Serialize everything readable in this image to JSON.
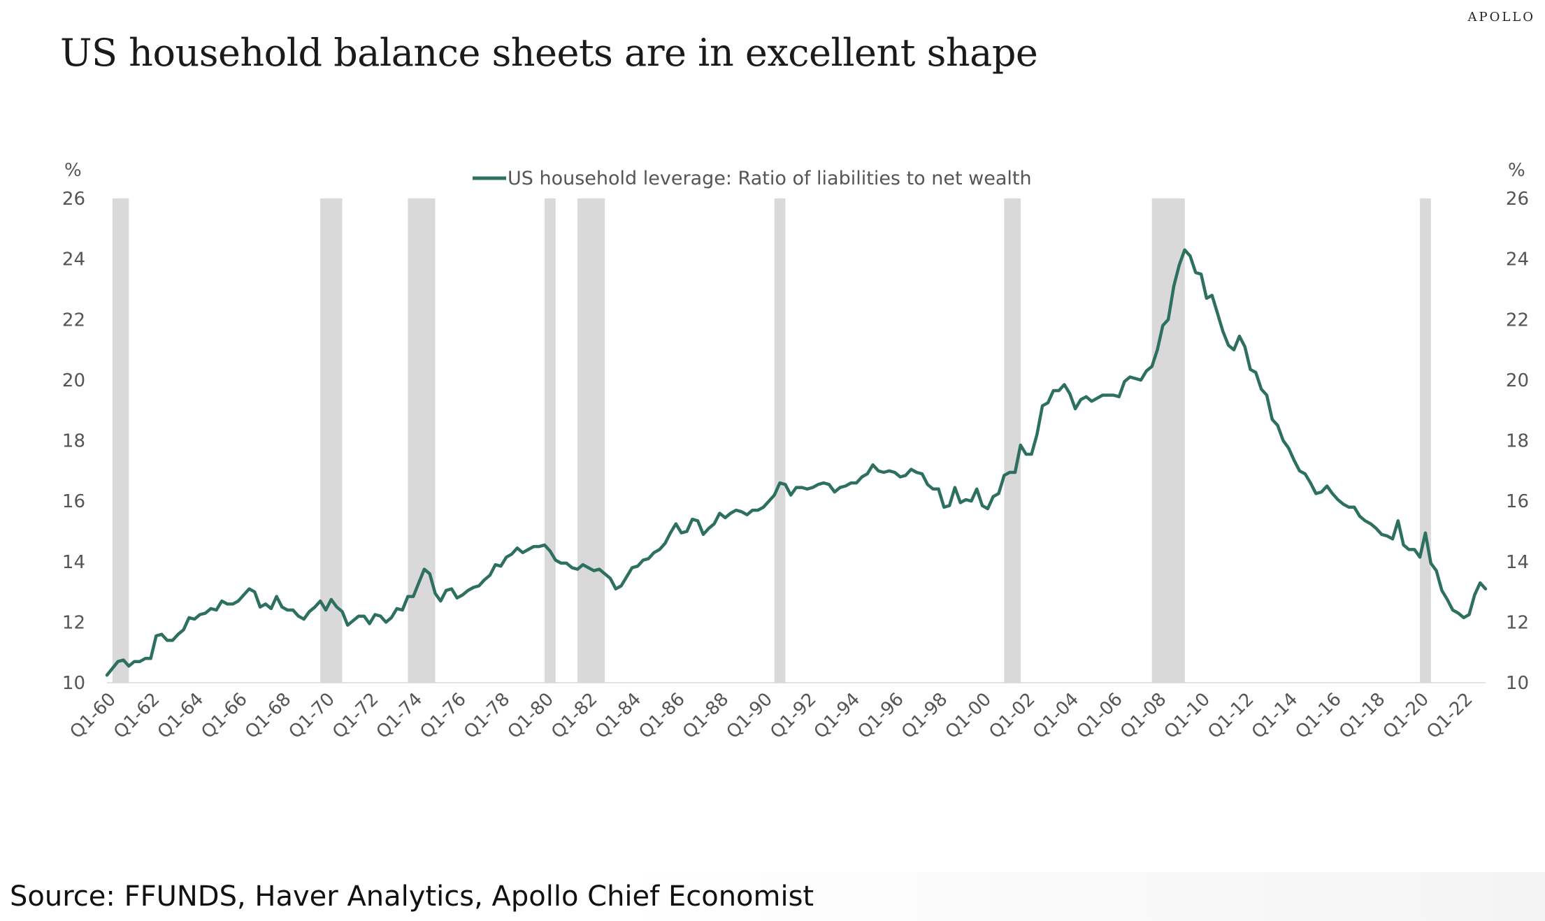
{
  "brand": "APOLLO",
  "title": "US household balance sheets are in excellent shape",
  "source": "Source: FFUNDS, Haver Analytics, Apollo Chief Economist",
  "chart_data": {
    "type": "line",
    "title": "US household balance sheets are in excellent shape",
    "ylabel_left": "%",
    "ylabel_right": "%",
    "ylim": [
      10,
      26
    ],
    "yticks": [
      10,
      12,
      14,
      16,
      18,
      20,
      22,
      24,
      26
    ],
    "xlim": [
      1960,
      2023
    ],
    "xtick_labels": [
      "Q1-60",
      "Q1-62",
      "Q1-64",
      "Q1-66",
      "Q1-68",
      "Q1-70",
      "Q1-72",
      "Q1-74",
      "Q1-76",
      "Q1-78",
      "Q1-80",
      "Q1-82",
      "Q1-84",
      "Q1-86",
      "Q1-88",
      "Q1-90",
      "Q1-92",
      "Q1-94",
      "Q1-96",
      "Q1-98",
      "Q1-00",
      "Q1-02",
      "Q1-04",
      "Q1-06",
      "Q1-08",
      "Q1-10",
      "Q1-12",
      "Q1-14",
      "Q1-16",
      "Q1-18",
      "Q1-20",
      "Q1-22"
    ],
    "grid": false,
    "legend_position": "top-center",
    "line_color": "#2e7060",
    "recession_color": "#d9d9d9",
    "recessions": [
      [
        1960.25,
        1961.0
      ],
      [
        1969.75,
        1970.75
      ],
      [
        1973.75,
        1975.0
      ],
      [
        1980.0,
        1980.5
      ],
      [
        1981.5,
        1982.75
      ],
      [
        1990.5,
        1991.0
      ],
      [
        2001.0,
        2001.75
      ],
      [
        2007.75,
        2009.25
      ],
      [
        2020.0,
        2020.5
      ]
    ],
    "series": [
      {
        "name": "US household leverage: Ratio of liabilities to net wealth",
        "points": [
          [
            1960.0,
            10.25
          ],
          [
            1960.5,
            10.7
          ],
          [
            1960.75,
            10.75
          ],
          [
            1961.0,
            10.55
          ],
          [
            1961.25,
            10.7
          ],
          [
            1961.5,
            10.7
          ],
          [
            1961.75,
            10.8
          ],
          [
            1962.0,
            10.8
          ],
          [
            1962.25,
            11.55
          ],
          [
            1962.5,
            11.6
          ],
          [
            1962.75,
            11.4
          ],
          [
            1963.0,
            11.4
          ],
          [
            1963.25,
            11.6
          ],
          [
            1963.5,
            11.75
          ],
          [
            1963.75,
            12.15
          ],
          [
            1964.0,
            12.1
          ],
          [
            1964.25,
            12.25
          ],
          [
            1964.5,
            12.3
          ],
          [
            1964.75,
            12.45
          ],
          [
            1965.0,
            12.4
          ],
          [
            1965.25,
            12.7
          ],
          [
            1965.5,
            12.6
          ],
          [
            1965.75,
            12.6
          ],
          [
            1966.0,
            12.7
          ],
          [
            1966.25,
            12.9
          ],
          [
            1966.5,
            13.1
          ],
          [
            1966.75,
            13.0
          ],
          [
            1967.0,
            12.5
          ],
          [
            1967.25,
            12.6
          ],
          [
            1967.5,
            12.45
          ],
          [
            1967.75,
            12.85
          ],
          [
            1968.0,
            12.5
          ],
          [
            1968.25,
            12.4
          ],
          [
            1968.5,
            12.4
          ],
          [
            1968.75,
            12.2
          ],
          [
            1969.0,
            12.1
          ],
          [
            1969.25,
            12.35
          ],
          [
            1969.5,
            12.5
          ],
          [
            1969.75,
            12.7
          ],
          [
            1970.0,
            12.4
          ],
          [
            1970.25,
            12.75
          ],
          [
            1970.5,
            12.5
          ],
          [
            1970.75,
            12.35
          ],
          [
            1971.0,
            11.9
          ],
          [
            1971.25,
            12.05
          ],
          [
            1971.5,
            12.2
          ],
          [
            1971.75,
            12.2
          ],
          [
            1972.0,
            11.95
          ],
          [
            1972.25,
            12.25
          ],
          [
            1972.5,
            12.2
          ],
          [
            1972.75,
            12.0
          ],
          [
            1973.0,
            12.15
          ],
          [
            1973.25,
            12.45
          ],
          [
            1973.5,
            12.4
          ],
          [
            1973.75,
            12.85
          ],
          [
            1974.0,
            12.85
          ],
          [
            1974.25,
            13.3
          ],
          [
            1974.5,
            13.75
          ],
          [
            1974.75,
            13.6
          ],
          [
            1975.0,
            12.95
          ],
          [
            1975.25,
            12.7
          ],
          [
            1975.5,
            13.05
          ],
          [
            1975.75,
            13.1
          ],
          [
            1976.0,
            12.8
          ],
          [
            1976.25,
            12.9
          ],
          [
            1976.5,
            13.05
          ],
          [
            1976.75,
            13.15
          ],
          [
            1977.0,
            13.2
          ],
          [
            1977.25,
            13.4
          ],
          [
            1977.5,
            13.55
          ],
          [
            1977.75,
            13.9
          ],
          [
            1978.0,
            13.85
          ],
          [
            1978.25,
            14.15
          ],
          [
            1978.5,
            14.25
          ],
          [
            1978.75,
            14.45
          ],
          [
            1979.0,
            14.3
          ],
          [
            1979.25,
            14.4
          ],
          [
            1979.5,
            14.5
          ],
          [
            1979.75,
            14.5
          ],
          [
            1980.0,
            14.55
          ],
          [
            1980.25,
            14.35
          ],
          [
            1980.5,
            14.05
          ],
          [
            1980.75,
            13.95
          ],
          [
            1981.0,
            13.95
          ],
          [
            1981.25,
            13.8
          ],
          [
            1981.5,
            13.75
          ],
          [
            1981.75,
            13.9
          ],
          [
            1982.0,
            13.8
          ],
          [
            1982.25,
            13.7
          ],
          [
            1982.5,
            13.75
          ],
          [
            1982.75,
            13.6
          ],
          [
            1983.0,
            13.45
          ],
          [
            1983.25,
            13.1
          ],
          [
            1983.5,
            13.2
          ],
          [
            1983.75,
            13.5
          ],
          [
            1984.0,
            13.8
          ],
          [
            1984.25,
            13.85
          ],
          [
            1984.5,
            14.05
          ],
          [
            1984.75,
            14.1
          ],
          [
            1985.0,
            14.3
          ],
          [
            1985.25,
            14.4
          ],
          [
            1985.5,
            14.6
          ],
          [
            1985.75,
            14.95
          ],
          [
            1986.0,
            15.25
          ],
          [
            1986.25,
            14.95
          ],
          [
            1986.5,
            15.0
          ],
          [
            1986.75,
            15.4
          ],
          [
            1987.0,
            15.35
          ],
          [
            1987.25,
            14.9
          ],
          [
            1987.5,
            15.1
          ],
          [
            1987.75,
            15.25
          ],
          [
            1988.0,
            15.6
          ],
          [
            1988.25,
            15.45
          ],
          [
            1988.5,
            15.6
          ],
          [
            1988.75,
            15.7
          ],
          [
            1989.0,
            15.65
          ],
          [
            1989.25,
            15.55
          ],
          [
            1989.5,
            15.7
          ],
          [
            1989.75,
            15.7
          ],
          [
            1990.0,
            15.8
          ],
          [
            1990.25,
            16.0
          ],
          [
            1990.5,
            16.2
          ],
          [
            1990.75,
            16.6
          ],
          [
            1991.0,
            16.55
          ],
          [
            1991.25,
            16.2
          ],
          [
            1991.5,
            16.45
          ],
          [
            1991.75,
            16.45
          ],
          [
            1992.0,
            16.4
          ],
          [
            1992.25,
            16.45
          ],
          [
            1992.5,
            16.55
          ],
          [
            1992.75,
            16.6
          ],
          [
            1993.0,
            16.55
          ],
          [
            1993.25,
            16.3
          ],
          [
            1993.5,
            16.45
          ],
          [
            1993.75,
            16.5
          ],
          [
            1994.0,
            16.6
          ],
          [
            1994.25,
            16.6
          ],
          [
            1994.5,
            16.8
          ],
          [
            1994.75,
            16.9
          ],
          [
            1995.0,
            17.2
          ],
          [
            1995.25,
            17.0
          ],
          [
            1995.5,
            16.95
          ],
          [
            1995.75,
            17.0
          ],
          [
            1996.0,
            16.95
          ],
          [
            1996.25,
            16.8
          ],
          [
            1996.5,
            16.85
          ],
          [
            1996.75,
            17.05
          ],
          [
            1997.0,
            16.95
          ],
          [
            1997.25,
            16.9
          ],
          [
            1997.5,
            16.55
          ],
          [
            1997.75,
            16.4
          ],
          [
            1998.0,
            16.4
          ],
          [
            1998.25,
            15.8
          ],
          [
            1998.5,
            15.85
          ],
          [
            1998.75,
            16.45
          ],
          [
            1999.0,
            15.95
          ],
          [
            1999.25,
            16.05
          ],
          [
            1999.5,
            16.0
          ],
          [
            1999.75,
            16.4
          ],
          [
            2000.0,
            15.85
          ],
          [
            2000.25,
            15.75
          ],
          [
            2000.5,
            16.15
          ],
          [
            2000.75,
            16.25
          ],
          [
            2001.0,
            16.85
          ],
          [
            2001.25,
            16.95
          ],
          [
            2001.5,
            16.95
          ],
          [
            2001.75,
            17.85
          ],
          [
            2002.0,
            17.55
          ],
          [
            2002.25,
            17.55
          ],
          [
            2002.5,
            18.2
          ],
          [
            2002.75,
            19.15
          ],
          [
            2003.0,
            19.25
          ],
          [
            2003.25,
            19.65
          ],
          [
            2003.5,
            19.65
          ],
          [
            2003.75,
            19.85
          ],
          [
            2004.0,
            19.55
          ],
          [
            2004.25,
            19.05
          ],
          [
            2004.5,
            19.35
          ],
          [
            2004.75,
            19.45
          ],
          [
            2005.0,
            19.3
          ],
          [
            2005.25,
            19.4
          ],
          [
            2005.5,
            19.5
          ],
          [
            2005.75,
            19.5
          ],
          [
            2006.0,
            19.5
          ],
          [
            2006.25,
            19.45
          ],
          [
            2006.5,
            19.95
          ],
          [
            2006.75,
            20.1
          ],
          [
            2007.0,
            20.05
          ],
          [
            2007.25,
            20.0
          ],
          [
            2007.5,
            20.3
          ],
          [
            2007.75,
            20.45
          ],
          [
            2008.0,
            21.0
          ],
          [
            2008.25,
            21.8
          ],
          [
            2008.5,
            22.0
          ],
          [
            2008.75,
            23.1
          ],
          [
            2009.0,
            23.8
          ],
          [
            2009.25,
            24.3
          ],
          [
            2009.5,
            24.1
          ],
          [
            2009.75,
            23.55
          ],
          [
            2010.0,
            23.5
          ],
          [
            2010.25,
            22.7
          ],
          [
            2010.5,
            22.8
          ],
          [
            2010.75,
            22.2
          ],
          [
            2011.0,
            21.6
          ],
          [
            2011.25,
            21.15
          ],
          [
            2011.5,
            21.0
          ],
          [
            2011.75,
            21.45
          ],
          [
            2012.0,
            21.1
          ],
          [
            2012.25,
            20.35
          ],
          [
            2012.5,
            20.25
          ],
          [
            2012.75,
            19.7
          ],
          [
            2013.0,
            19.5
          ],
          [
            2013.25,
            18.7
          ],
          [
            2013.5,
            18.5
          ],
          [
            2013.75,
            18.0
          ],
          [
            2014.0,
            17.75
          ],
          [
            2014.25,
            17.35
          ],
          [
            2014.5,
            17.0
          ],
          [
            2014.75,
            16.9
          ],
          [
            2015.0,
            16.6
          ],
          [
            2015.25,
            16.25
          ],
          [
            2015.5,
            16.3
          ],
          [
            2015.75,
            16.5
          ],
          [
            2016.0,
            16.25
          ],
          [
            2016.25,
            16.05
          ],
          [
            2016.5,
            15.9
          ],
          [
            2016.75,
            15.8
          ],
          [
            2017.0,
            15.8
          ],
          [
            2017.25,
            15.5
          ],
          [
            2017.5,
            15.35
          ],
          [
            2017.75,
            15.25
          ],
          [
            2018.0,
            15.1
          ],
          [
            2018.25,
            14.9
          ],
          [
            2018.5,
            14.85
          ],
          [
            2018.75,
            14.75
          ],
          [
            2019.0,
            15.35
          ],
          [
            2019.25,
            14.55
          ],
          [
            2019.5,
            14.4
          ],
          [
            2019.75,
            14.4
          ],
          [
            2020.0,
            14.15
          ],
          [
            2020.25,
            14.95
          ],
          [
            2020.5,
            13.95
          ],
          [
            2020.75,
            13.7
          ],
          [
            2021.0,
            13.05
          ],
          [
            2021.25,
            12.75
          ],
          [
            2021.5,
            12.4
          ],
          [
            2021.75,
            12.3
          ],
          [
            2022.0,
            12.15
          ],
          [
            2022.25,
            12.25
          ],
          [
            2022.5,
            12.9
          ],
          [
            2022.75,
            13.3
          ],
          [
            2023.0,
            13.1
          ]
        ]
      }
    ]
  }
}
